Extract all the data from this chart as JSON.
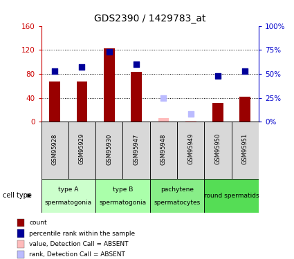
{
  "title": "GDS2390 / 1429783_at",
  "samples": [
    "GSM95928",
    "GSM95929",
    "GSM95930",
    "GSM95947",
    "GSM95948",
    "GSM95949",
    "GSM95950",
    "GSM95951"
  ],
  "bar_values": [
    67,
    67,
    122,
    83,
    null,
    null,
    32,
    42
  ],
  "bar_absent_values": [
    null,
    null,
    null,
    null,
    6,
    2,
    null,
    null
  ],
  "rank_values": [
    53,
    57,
    73,
    60,
    null,
    null,
    48,
    53
  ],
  "rank_absent_values": [
    null,
    null,
    null,
    null,
    25,
    8,
    null,
    null
  ],
  "bar_color": "#990000",
  "bar_absent_color": "#ffbbbb",
  "rank_color": "#000099",
  "rank_absent_color": "#bbbbff",
  "ylim_left": [
    0,
    160
  ],
  "ylim_right": [
    0,
    100
  ],
  "yticks_left": [
    0,
    40,
    80,
    120,
    160
  ],
  "ytick_labels_left": [
    "0",
    "40",
    "80",
    "120",
    "160"
  ],
  "yticks_right": [
    0,
    25,
    50,
    75,
    100
  ],
  "ytick_labels_right": [
    "0%",
    "25%",
    "50%",
    "75%",
    "100%"
  ],
  "groups": [
    {
      "label": "type A\nspermatogonia",
      "indices": [
        0,
        1
      ],
      "color": "#ccffcc"
    },
    {
      "label": "type B\nspermatogonia",
      "indices": [
        2,
        3
      ],
      "color": "#aaffaa"
    },
    {
      "label": "pachytene\nspermatocytes",
      "indices": [
        4,
        5
      ],
      "color": "#88ee88"
    },
    {
      "label": "round spermatids",
      "indices": [
        6,
        7
      ],
      "color": "#55dd55"
    }
  ],
  "cell_type_label": "cell type",
  "legend_items": [
    {
      "label": "count",
      "color": "#990000"
    },
    {
      "label": "percentile rank within the sample",
      "color": "#000099"
    },
    {
      "label": "value, Detection Call = ABSENT",
      "color": "#ffbbbb"
    },
    {
      "label": "rank, Detection Call = ABSENT",
      "color": "#bbbbff"
    }
  ]
}
